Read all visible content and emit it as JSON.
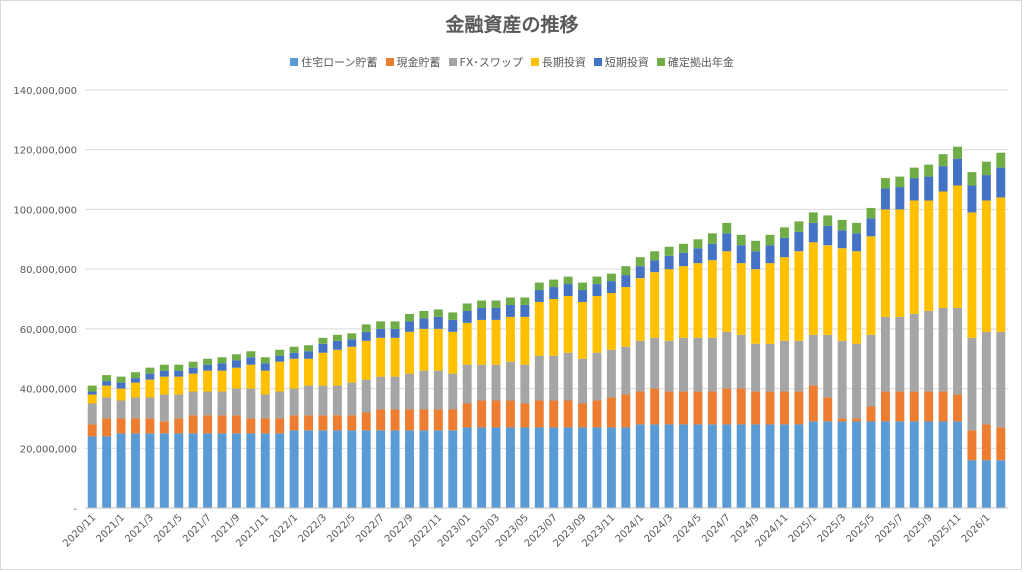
{
  "chart_data": {
    "type": "bar",
    "stacked": true,
    "title": "金融資産の推移",
    "legend_position": "top",
    "grid": true,
    "ylim": [
      0,
      140000000
    ],
    "y_ticks": [
      "-",
      "20,000,000",
      "40,000,000",
      "60,000,000",
      "80,000,000",
      "100,000,000",
      "120,000,000",
      "140,000,000"
    ],
    "y_tick_values": [
      0,
      20000000,
      40000000,
      60000000,
      80000000,
      100000000,
      120000000,
      140000000
    ],
    "categories": [
      "2020/11",
      "2020/12",
      "2021/1",
      "2021/2",
      "2021/3",
      "2021/4",
      "2021/5",
      "2021/6",
      "2021/7",
      "2021/8",
      "2021/9",
      "2021/10",
      "2021/11",
      "2021/12",
      "2022/1",
      "2022/2",
      "2022/3",
      "2022/4",
      "2022/5",
      "2022/6",
      "2022/7",
      "2022/8",
      "2022/9",
      "2022/10",
      "2022/11",
      "2022/12",
      "2023/01",
      "2023/02",
      "2023/03",
      "2023/04",
      "2023/05",
      "2023/06",
      "2023/07",
      "2023/08",
      "2023/09",
      "2023/10",
      "2023/11",
      "2023/12",
      "2024/1",
      "2024/2",
      "2024/3",
      "2024/4",
      "2024/5",
      "2024/6",
      "2024/7",
      "2024/8",
      "2024/9",
      "2024/10",
      "2024/11",
      "2024/12",
      "2025/1",
      "2025/2",
      "2025/3",
      "2025/4",
      "2025/5",
      "2025/6",
      "2025/7",
      "2025/8",
      "2025/9",
      "2025/10",
      "2025/11",
      "2025/12",
      "2026/1",
      "2026/2"
    ],
    "x_tick_labels": [
      "2020/11",
      "2021/1",
      "2021/3",
      "2021/5",
      "2021/7",
      "2021/9",
      "2021/11",
      "2022/1",
      "2022/3",
      "2022/5",
      "2022/7",
      "2022/9",
      "2022/11",
      "2023/01",
      "2023/03",
      "2023/05",
      "2023/07",
      "2023/09",
      "2023/11",
      "2024/1",
      "2024/3",
      "2024/5",
      "2024/7",
      "2024/9",
      "2024/11",
      "2025/1",
      "2025/3",
      "2025/5",
      "2025/7",
      "2025/9",
      "2025/11",
      "2026/1"
    ],
    "series": [
      {
        "name": "住宅ローン貯蓄",
        "color": "#5b9bd5",
        "values": [
          24000000,
          24000000,
          25000000,
          25000000,
          25000000,
          25000000,
          25000000,
          25000000,
          25000000,
          25000000,
          25000000,
          25000000,
          25000000,
          25000000,
          26000000,
          26000000,
          26000000,
          26000000,
          26000000,
          26000000,
          26000000,
          26000000,
          26000000,
          26000000,
          26000000,
          26000000,
          27000000,
          27000000,
          27000000,
          27000000,
          27000000,
          27000000,
          27000000,
          27000000,
          27000000,
          27000000,
          27000000,
          27000000,
          28000000,
          28000000,
          28000000,
          28000000,
          28000000,
          28000000,
          28000000,
          28000000,
          28000000,
          28000000,
          28000000,
          28000000,
          29000000,
          29000000,
          29000000,
          29000000,
          29000000,
          29000000,
          29000000,
          29000000,
          29000000,
          29000000,
          29000000,
          16000000,
          16000000,
          16000000
        ]
      },
      {
        "name": "現金貯蓄",
        "color": "#ed7d31",
        "values": [
          4000000,
          6000000,
          5000000,
          5000000,
          5000000,
          4000000,
          5000000,
          6000000,
          6000000,
          6000000,
          6000000,
          5000000,
          5000000,
          5000000,
          5000000,
          5000000,
          5000000,
          5000000,
          5000000,
          6000000,
          7000000,
          7000000,
          7000000,
          7000000,
          7000000,
          7000000,
          8000000,
          9000000,
          9000000,
          9000000,
          8000000,
          9000000,
          9000000,
          9000000,
          8000000,
          9000000,
          10000000,
          11000000,
          11000000,
          12000000,
          11000000,
          11000000,
          11000000,
          11000000,
          12000000,
          12000000,
          11000000,
          11000000,
          11000000,
          11000000,
          12000000,
          8000000,
          1000000,
          1000000,
          5000000,
          10000000,
          10000000,
          10000000,
          10000000,
          10000000,
          9000000,
          10000000,
          12000000,
          11000000
        ]
      },
      {
        "name": "FX･スワップ",
        "color": "#a5a5a5",
        "values": [
          7000000,
          7000000,
          6000000,
          7000000,
          7000000,
          9000000,
          8000000,
          8000000,
          8000000,
          8000000,
          9000000,
          10000000,
          8000000,
          9000000,
          9000000,
          10000000,
          10000000,
          10000000,
          11000000,
          11000000,
          11000000,
          11000000,
          12000000,
          13000000,
          13000000,
          12000000,
          13000000,
          12000000,
          12000000,
          13000000,
          13000000,
          15000000,
          15000000,
          16000000,
          15000000,
          16000000,
          16000000,
          16000000,
          17000000,
          17000000,
          17000000,
          18000000,
          18000000,
          18000000,
          19000000,
          18000000,
          16000000,
          16000000,
          17000000,
          17000000,
          17000000,
          21000000,
          26000000,
          25000000,
          24000000,
          25000000,
          25000000,
          26000000,
          27000000,
          28000000,
          29000000,
          31000000,
          31000000,
          32000000
        ]
      },
      {
        "name": "長期投資",
        "color": "#ffc000",
        "values": [
          3000000,
          4000000,
          4000000,
          5000000,
          6000000,
          6000000,
          6000000,
          6000000,
          7000000,
          7000000,
          7000000,
          8000000,
          8000000,
          10000000,
          10000000,
          9000000,
          11000000,
          12000000,
          12000000,
          13000000,
          13000000,
          13000000,
          14000000,
          14000000,
          14000000,
          14000000,
          14000000,
          15000000,
          15000000,
          15000000,
          16000000,
          18000000,
          19000000,
          19000000,
          19000000,
          19000000,
          19000000,
          20000000,
          21000000,
          22000000,
          24000000,
          24000000,
          25000000,
          26000000,
          27000000,
          24000000,
          25000000,
          27000000,
          28000000,
          30000000,
          31000000,
          30000000,
          31000000,
          31000000,
          33000000,
          36000000,
          36000000,
          38000000,
          37000000,
          39000000,
          41000000,
          42000000,
          44000000,
          45000000
        ]
      },
      {
        "name": "短期投資",
        "color": "#4472c4",
        "values": [
          1000000,
          1500000,
          2000000,
          1500000,
          2000000,
          2000000,
          2000000,
          2000000,
          2000000,
          2500000,
          2500000,
          2500000,
          2500000,
          2000000,
          2000000,
          2500000,
          3000000,
          3000000,
          2500000,
          3000000,
          3000000,
          3000000,
          3500000,
          3500000,
          4000000,
          4000000,
          4000000,
          4000000,
          4000000,
          4000000,
          4000000,
          4000000,
          4000000,
          4000000,
          4000000,
          4000000,
          4000000,
          4000000,
          4000000,
          4000000,
          4500000,
          4500000,
          5000000,
          5500000,
          6000000,
          6000000,
          6000000,
          6000000,
          6500000,
          6500000,
          6500000,
          6500000,
          6000000,
          6000000,
          6000000,
          7000000,
          7500000,
          7500000,
          8000000,
          8500000,
          9000000,
          9000000,
          8500000,
          10000000
        ]
      },
      {
        "name": "確定拠出年金",
        "color": "#70ad47",
        "values": [
          2000000,
          2000000,
          2000000,
          2000000,
          2000000,
          2000000,
          2000000,
          2000000,
          2000000,
          2000000,
          2000000,
          2000000,
          2000000,
          2000000,
          2000000,
          2000000,
          2000000,
          2000000,
          2000000,
          2500000,
          2500000,
          2500000,
          2500000,
          2500000,
          2500000,
          2500000,
          2500000,
          2500000,
          2500000,
          2500000,
          2500000,
          2500000,
          2500000,
          2500000,
          2500000,
          2500000,
          2500000,
          3000000,
          3000000,
          3000000,
          3000000,
          3000000,
          3000000,
          3500000,
          3500000,
          3500000,
          3500000,
          3500000,
          3500000,
          3500000,
          3500000,
          3500000,
          3500000,
          3500000,
          3500000,
          3500000,
          3500000,
          3500000,
          4000000,
          4000000,
          4000000,
          4500000,
          4500000,
          5000000
        ]
      }
    ]
  }
}
